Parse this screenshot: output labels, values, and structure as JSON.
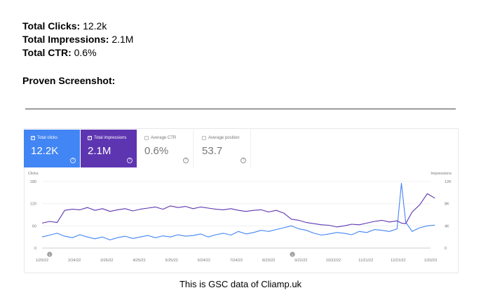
{
  "stats": [
    {
      "label": "Total Clicks:",
      "value": "12.2k"
    },
    {
      "label": "Total Impressions:",
      "value": "2.1M"
    },
    {
      "label": "Total CTR:",
      "value": "0.6%"
    }
  ],
  "proven_label": "Proven Screenshot:",
  "caption": "This is GSC data of Cliamp.uk",
  "cards": {
    "clicks": {
      "label": "Total clicks",
      "value": "12.2K",
      "color": "#4285f4"
    },
    "impressions": {
      "label": "Total impressions",
      "value": "2.1M",
      "color": "#5e35b1"
    },
    "ctr": {
      "label": "Average CTR",
      "value": "0.6%"
    },
    "position": {
      "label": "Average position",
      "value": "53.7"
    }
  },
  "chart_data": {
    "type": "line",
    "left_axis_title": "Clicks",
    "right_axis_title": "Impressions",
    "left_ticks": [
      "180",
      "120",
      "60",
      "0"
    ],
    "right_ticks": [
      "12K",
      "8K",
      "4K",
      "0"
    ],
    "ylim_left": [
      0,
      180
    ],
    "ylim_right": [
      0,
      12000
    ],
    "x_labels": [
      "1/25/22",
      "2/24/22",
      "3/26/22",
      "4/25/22",
      "5/25/22",
      "6/24/22",
      "7/24/22",
      "8/23/22",
      "9/22/22",
      "10/22/22",
      "11/21/22",
      "12/21/22",
      "1/20/23"
    ],
    "annotation_markers": [
      "2/1/22",
      "9/14/22"
    ],
    "grid": true,
    "series": [
      {
        "name": "Total clicks",
        "axis": "left",
        "color": "#4285f4",
        "x": [
          "1/25/22",
          "2/1/22",
          "2/8/22",
          "2/15/22",
          "2/22/22",
          "3/1/22",
          "3/8/22",
          "3/15/22",
          "3/22/22",
          "3/29/22",
          "4/5/22",
          "4/12/22",
          "4/19/22",
          "4/26/22",
          "5/3/22",
          "5/10/22",
          "5/17/22",
          "5/24/22",
          "5/31/22",
          "6/7/22",
          "6/14/22",
          "6/21/22",
          "6/28/22",
          "7/5/22",
          "7/12/22",
          "7/19/22",
          "7/26/22",
          "8/2/22",
          "8/9/22",
          "8/16/22",
          "8/23/22",
          "8/30/22",
          "9/6/22",
          "9/13/22",
          "9/20/22",
          "9/27/22",
          "10/4/22",
          "10/11/22",
          "10/18/22",
          "10/25/22",
          "11/1/22",
          "11/8/22",
          "11/15/22",
          "11/22/22",
          "11/29/22",
          "12/6/22",
          "12/13/22",
          "12/20/22",
          "12/24/22",
          "12/28/22",
          "1/3/23",
          "1/10/23",
          "1/17/23",
          "1/24/23"
        ],
        "values": [
          30,
          35,
          40,
          32,
          28,
          36,
          30,
          25,
          30,
          22,
          28,
          32,
          26,
          30,
          34,
          28,
          33,
          30,
          36,
          32,
          34,
          38,
          30,
          36,
          40,
          35,
          45,
          38,
          42,
          48,
          45,
          50,
          55,
          60,
          52,
          48,
          40,
          35,
          38,
          42,
          40,
          36,
          45,
          42,
          50,
          48,
          45,
          52,
          175,
          70,
          45,
          55,
          60,
          62
        ]
      },
      {
        "name": "Total impressions",
        "axis": "right",
        "color": "#5e35b1",
        "x": [
          "1/25/22",
          "2/1/22",
          "2/8/22",
          "2/15/22",
          "2/22/22",
          "3/1/22",
          "3/8/22",
          "3/15/22",
          "3/22/22",
          "3/29/22",
          "4/5/22",
          "4/12/22",
          "4/19/22",
          "4/26/22",
          "5/3/22",
          "5/10/22",
          "5/17/22",
          "5/24/22",
          "5/31/22",
          "6/7/22",
          "6/14/22",
          "6/21/22",
          "6/28/22",
          "7/5/22",
          "7/12/22",
          "7/19/22",
          "7/26/22",
          "8/2/22",
          "8/9/22",
          "8/16/22",
          "8/23/22",
          "8/30/22",
          "9/6/22",
          "9/13/22",
          "9/20/22",
          "9/27/22",
          "10/4/22",
          "10/11/22",
          "10/18/22",
          "10/25/22",
          "11/1/22",
          "11/8/22",
          "11/15/22",
          "11/22/22",
          "11/29/22",
          "12/6/22",
          "12/13/22",
          "12/20/22",
          "12/24/22",
          "12/28/22",
          "1/3/23",
          "1/10/23",
          "1/17/23",
          "1/24/23"
        ],
        "values": [
          4500,
          4800,
          4600,
          6800,
          7000,
          6900,
          7300,
          6800,
          7100,
          6600,
          6900,
          7100,
          6700,
          7000,
          7200,
          7400,
          7000,
          7600,
          7300,
          7500,
          7100,
          7400,
          7200,
          7000,
          6900,
          7100,
          6800,
          6600,
          6800,
          6900,
          6500,
          6800,
          6300,
          5200,
          5000,
          4600,
          4400,
          4200,
          4100,
          3800,
          4000,
          4300,
          4200,
          4500,
          4800,
          5000,
          4700,
          4900,
          4500,
          4400,
          6500,
          7800,
          9800,
          9000
        ]
      }
    ]
  }
}
